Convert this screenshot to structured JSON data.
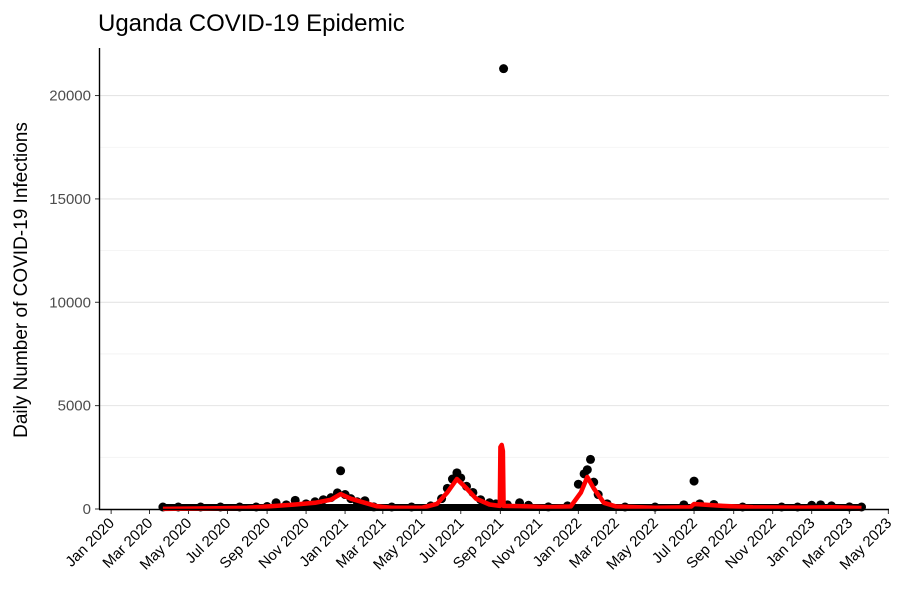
{
  "chart_data": {
    "type": "scatter",
    "title": "Uganda COVID-19 Epidemic",
    "xlabel": "",
    "ylabel": "Daily Number of COVID-19 Infections",
    "x_ticks": [
      "Jan 2020",
      "Mar 2020",
      "May 2020",
      "Jul 2020",
      "Sep 2020",
      "Nov 2020",
      "Jan 2021",
      "Mar 2021",
      "May 2021",
      "Jul 2021",
      "Sep 2021",
      "Nov 2021",
      "Jan 2022",
      "Mar 2022",
      "May 2022",
      "Jul 2022",
      "Sep 2022",
      "Nov 2022",
      "Jan 2023",
      "Mar 2023",
      "May 2023"
    ],
    "y_ticks": [
      0,
      5000,
      10000,
      15000,
      20000
    ],
    "xlim": [
      "2019-12-13",
      "2023-05-02"
    ],
    "ylim": [
      0,
      22300
    ],
    "grid": "horizontal",
    "colors": {
      "points": "#000000",
      "smooth": "#ff0000"
    },
    "series": [
      {
        "kind": "points",
        "points": [
          [
            "2020-03-22",
            10
          ],
          [
            "2020-04-15",
            20
          ],
          [
            "2020-05-20",
            40
          ],
          [
            "2020-06-20",
            60
          ],
          [
            "2020-07-20",
            70
          ],
          [
            "2020-08-15",
            80
          ],
          [
            "2020-09-01",
            120
          ],
          [
            "2020-09-15",
            300
          ],
          [
            "2020-10-01",
            200
          ],
          [
            "2020-10-15",
            420
          ],
          [
            "2020-11-01",
            250
          ],
          [
            "2020-11-15",
            350
          ],
          [
            "2020-11-28",
            450
          ],
          [
            "2020-12-10",
            550
          ],
          [
            "2020-12-20",
            780
          ],
          [
            "2020-12-25",
            1850
          ],
          [
            "2021-01-01",
            700
          ],
          [
            "2021-01-10",
            500
          ],
          [
            "2021-01-20",
            350
          ],
          [
            "2021-02-01",
            400
          ],
          [
            "2021-02-15",
            100
          ],
          [
            "2021-03-15",
            60
          ],
          [
            "2021-04-15",
            60
          ],
          [
            "2021-05-15",
            150
          ],
          [
            "2021-06-01",
            500
          ],
          [
            "2021-06-10",
            1000
          ],
          [
            "2021-06-18",
            1450
          ],
          [
            "2021-06-25",
            1750
          ],
          [
            "2021-07-01",
            1500
          ],
          [
            "2021-07-10",
            1100
          ],
          [
            "2021-07-20",
            800
          ],
          [
            "2021-08-01",
            450
          ],
          [
            "2021-08-15",
            300
          ],
          [
            "2021-08-25",
            250
          ],
          [
            "2021-09-06",
            21300
          ],
          [
            "2021-09-12",
            200
          ],
          [
            "2021-10-01",
            300
          ],
          [
            "2021-10-15",
            180
          ],
          [
            "2021-11-15",
            100
          ],
          [
            "2021-12-15",
            150
          ],
          [
            "2022-01-01",
            1200
          ],
          [
            "2022-01-10",
            1700
          ],
          [
            "2022-01-15",
            1900
          ],
          [
            "2022-01-20",
            2400
          ],
          [
            "2022-01-25",
            1300
          ],
          [
            "2022-02-01",
            700
          ],
          [
            "2022-02-15",
            250
          ],
          [
            "2022-03-15",
            80
          ],
          [
            "2022-05-01",
            60
          ],
          [
            "2022-06-15",
            200
          ],
          [
            "2022-07-01",
            1350
          ],
          [
            "2022-07-10",
            250
          ],
          [
            "2022-08-01",
            220
          ],
          [
            "2022-09-15",
            90
          ],
          [
            "2022-11-15",
            60
          ],
          [
            "2022-12-10",
            80
          ],
          [
            "2023-01-01",
            180
          ],
          [
            "2023-01-15",
            200
          ],
          [
            "2023-02-01",
            150
          ],
          [
            "2023-03-01",
            100
          ],
          [
            "2023-03-20",
            60
          ]
        ]
      },
      {
        "kind": "smooth-line",
        "points": [
          [
            "2020-03-22",
            5
          ],
          [
            "2020-06-01",
            30
          ],
          [
            "2020-08-01",
            60
          ],
          [
            "2020-09-15",
            150
          ],
          [
            "2020-10-15",
            220
          ],
          [
            "2020-11-15",
            300
          ],
          [
            "2020-12-10",
            450
          ],
          [
            "2020-12-25",
            720
          ],
          [
            "2021-01-10",
            500
          ],
          [
            "2021-02-01",
            300
          ],
          [
            "2021-02-20",
            130
          ],
          [
            "2021-03-15",
            60
          ],
          [
            "2021-05-01",
            60
          ],
          [
            "2021-05-25",
            250
          ],
          [
            "2021-06-10",
            800
          ],
          [
            "2021-06-25",
            1450
          ],
          [
            "2021-07-10",
            1000
          ],
          [
            "2021-07-25",
            500
          ],
          [
            "2021-08-15",
            220
          ],
          [
            "2021-08-31",
            150
          ],
          [
            "2021-09-01",
            3000
          ],
          [
            "2021-09-03",
            3100
          ],
          [
            "2021-09-05",
            2800
          ],
          [
            "2021-09-06",
            150
          ],
          [
            "2021-10-01",
            140
          ],
          [
            "2021-11-15",
            90
          ],
          [
            "2021-12-20",
            120
          ],
          [
            "2022-01-05",
            800
          ],
          [
            "2022-01-15",
            1550
          ],
          [
            "2022-01-25",
            1000
          ],
          [
            "2022-02-10",
            300
          ],
          [
            "2022-03-01",
            120
          ],
          [
            "2022-05-01",
            60
          ],
          [
            "2022-06-25",
            80
          ],
          [
            "2022-07-01",
            240
          ],
          [
            "2022-08-15",
            150
          ],
          [
            "2022-10-01",
            80
          ],
          [
            "2022-12-15",
            70
          ],
          [
            "2023-02-01",
            80
          ],
          [
            "2023-03-20",
            50
          ]
        ]
      }
    ]
  }
}
